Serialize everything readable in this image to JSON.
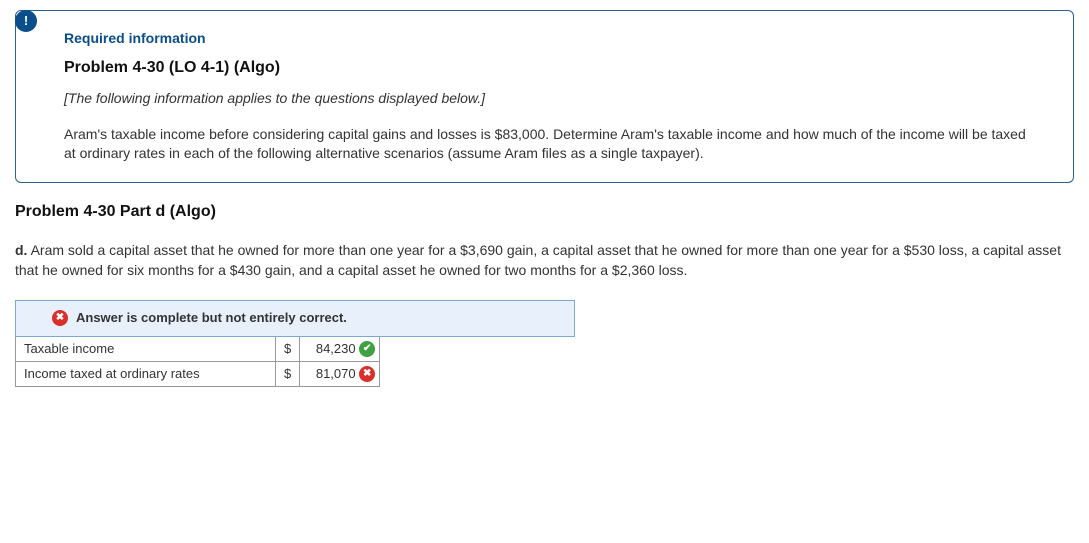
{
  "info_badge": "!",
  "required_label": "Required information",
  "problem_title": "Problem 4-30 (LO 4-1) (Algo)",
  "italic_note": "[The following information applies to the questions displayed below.]",
  "scenario_text": "Aram's taxable income before considering capital gains and losses is $83,000. Determine Aram's taxable income and how much of the income will be taxed at ordinary rates in each of the following alternative scenarios (assume Aram files as a single taxpayer).",
  "part_title": "Problem 4-30 Part d (Algo)",
  "part_label": "d.",
  "part_text": " Aram sold a capital asset that he owned for more than one year for a $3,690 gain, a capital asset that he owned for more than one year for a $530 loss, a capital asset that he owned for six months for a $430 gain, and a capital asset he owned for two months for a $2,360 loss.",
  "feedback": {
    "icon_glyph": "✖",
    "text": "Answer is complete but not entirely correct.",
    "icon_color": "#d9302c",
    "bg_color": "#e8f1fb",
    "border_color": "#7fa8d4"
  },
  "answer_table": {
    "rows": [
      {
        "label": "Taxable income",
        "currency": "$",
        "value": "84,230",
        "mark": "correct"
      },
      {
        "label": "Income taxed at ordinary rates",
        "currency": "$",
        "value": "81,070",
        "mark": "wrong"
      }
    ],
    "mark_glyphs": {
      "correct": "✔",
      "wrong": "✖"
    },
    "mark_colors": {
      "correct": "#3fa142",
      "wrong": "#d9302c"
    }
  }
}
